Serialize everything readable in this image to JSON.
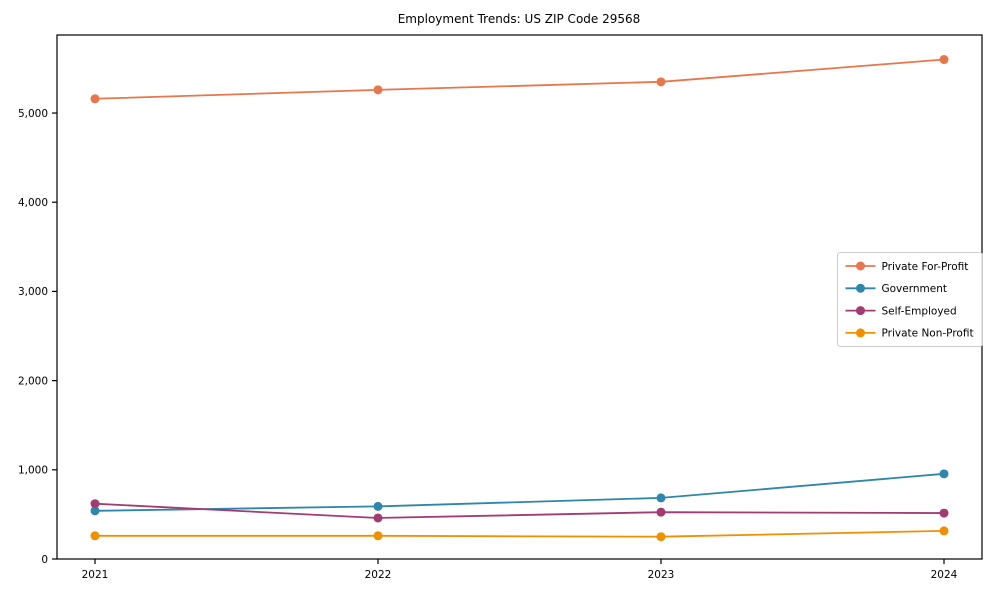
{
  "title": "Employment Trends: US ZIP Code 29568",
  "chart_data": {
    "type": "line",
    "title": "Employment Trends: US ZIP Code 29568",
    "xlabel": "",
    "ylabel": "",
    "categories": [
      "2021",
      "2022",
      "2023",
      "2024"
    ],
    "series": [
      {
        "name": "Private For-Profit",
        "color": "#E8764B",
        "values": [
          5160,
          5260,
          5350,
          5600
        ]
      },
      {
        "name": "Government",
        "color": "#2E86AB",
        "values": [
          540,
          590,
          685,
          955
        ]
      },
      {
        "name": "Self-Employed",
        "color": "#A23B72",
        "values": [
          620,
          460,
          525,
          515
        ]
      },
      {
        "name": "Private Non-Profit",
        "color": "#F18F01",
        "values": [
          260,
          260,
          250,
          315
        ]
      }
    ],
    "ylim": [
      0,
      5875
    ],
    "yticks": [
      0,
      1000,
      2000,
      3000,
      4000,
      5000
    ],
    "ytick_labels": [
      "0",
      "1,000",
      "2,000",
      "3,000",
      "4,000",
      "5,000"
    ],
    "grid": false,
    "legend_position": "right",
    "marker": "circle",
    "axis_color": "#000000",
    "legend_border_color": "#cccccc",
    "legend_bg_color": "#ffffff"
  }
}
